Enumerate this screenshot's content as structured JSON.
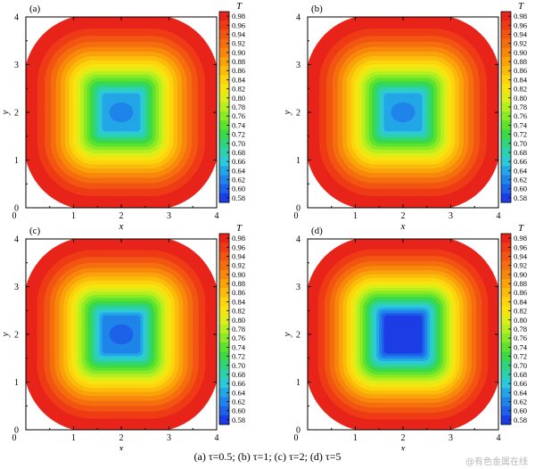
{
  "chart_data": [
    {
      "type": "heatmap",
      "panel_label": "(a)",
      "xlabel": "x",
      "ylabel": "y",
      "xlim": [
        0,
        4
      ],
      "ylim": [
        0,
        4
      ],
      "xticks": [
        "0",
        "1",
        "2",
        "3",
        "4"
      ],
      "yticks": [
        "0",
        "1",
        "2",
        "3",
        "4"
      ],
      "colorbar_title": "T",
      "colorbar_ticks": [
        "0.98",
        "0.96",
        "0.94",
        "0.92",
        "0.90",
        "0.88",
        "0.86",
        "0.84",
        "0.82",
        "0.80",
        "0.78",
        "0.76",
        "0.74",
        "0.72",
        "0.70",
        "0.68",
        "0.66",
        "0.64",
        "0.62",
        "0.60",
        "0.58"
      ],
      "colorbar_colors": [
        "#e8231a",
        "#ee3a15",
        "#f25511",
        "#f56e0e",
        "#f8870c",
        "#f9a20a",
        "#fbbb0a",
        "#fcd30c",
        "#f6e411",
        "#dded18",
        "#b5ef1e",
        "#8aea25",
        "#5fe22d",
        "#3ad945",
        "#2fd47c",
        "#2dd1ae",
        "#2cc9d8",
        "#23a6e8",
        "#1f84ea",
        "#1e61e9",
        "#1c3ce6"
      ],
      "cold_region": {
        "x": [
          1.65,
          2.35
        ],
        "y": [
          1.65,
          2.35
        ]
      },
      "core_value": 0.64,
      "boundary_value": 0.98
    },
    {
      "type": "heatmap",
      "panel_label": "(b)",
      "xlabel": "x",
      "ylabel": "y",
      "xlim": [
        0,
        4
      ],
      "ylim": [
        0,
        4
      ],
      "xticks": [
        "0",
        "1",
        "2",
        "3",
        "4"
      ],
      "yticks": [
        "0",
        "1",
        "2",
        "3",
        "4"
      ],
      "colorbar_title": "T",
      "colorbar_ticks": [
        "0.98",
        "0.96",
        "0.94",
        "0.92",
        "0.90",
        "0.88",
        "0.86",
        "0.84",
        "0.82",
        "0.80",
        "0.78",
        "0.76",
        "0.74",
        "0.72",
        "0.70",
        "0.68",
        "0.66",
        "0.64",
        "0.62",
        "0.60",
        "0.58"
      ],
      "colorbar_colors": [
        "#e8231a",
        "#ee3a15",
        "#f25511",
        "#f56e0e",
        "#f8870c",
        "#f9a20a",
        "#fbbb0a",
        "#fcd30c",
        "#f6e411",
        "#dded18",
        "#b5ef1e",
        "#8aea25",
        "#5fe22d",
        "#3ad945",
        "#2fd47c",
        "#2dd1ae",
        "#2cc9d8",
        "#23a6e8",
        "#1f84ea",
        "#1e61e9",
        "#1c3ce6"
      ],
      "cold_region": {
        "x": [
          1.65,
          2.35
        ],
        "y": [
          1.65,
          2.35
        ]
      },
      "core_value": 0.63,
      "boundary_value": 0.98
    },
    {
      "type": "heatmap",
      "panel_label": "(c)",
      "xlabel": "x",
      "ylabel": "y",
      "xlim": [
        0,
        4
      ],
      "ylim": [
        0,
        4
      ],
      "xticks": [
        "0",
        "1",
        "2",
        "3",
        "4"
      ],
      "yticks": [
        "0",
        "1",
        "2",
        "3",
        "4"
      ],
      "colorbar_title": "T",
      "colorbar_ticks": [
        "0.98",
        "0.96",
        "0.94",
        "0.92",
        "0.90",
        "0.88",
        "0.86",
        "0.84",
        "0.82",
        "0.80",
        "0.78",
        "0.76",
        "0.74",
        "0.72",
        "0.70",
        "0.68",
        "0.66",
        "0.64",
        "0.62",
        "0.60",
        "0.58"
      ],
      "colorbar_colors": [
        "#e8231a",
        "#ee3a15",
        "#f25511",
        "#f56e0e",
        "#f8870c",
        "#f9a20a",
        "#fbbb0a",
        "#fcd30c",
        "#f6e411",
        "#dded18",
        "#b5ef1e",
        "#8aea25",
        "#5fe22d",
        "#3ad945",
        "#2fd47c",
        "#2dd1ae",
        "#2cc9d8",
        "#23a6e8",
        "#1f84ea",
        "#1e61e9",
        "#1c3ce6"
      ],
      "cold_region": {
        "x": [
          1.65,
          2.35
        ],
        "y": [
          1.65,
          2.35
        ]
      },
      "core_value": 0.61,
      "boundary_value": 0.98
    },
    {
      "type": "heatmap",
      "panel_label": "(d)",
      "xlabel": "x",
      "ylabel": "y",
      "xlim": [
        0,
        4
      ],
      "ylim": [
        0,
        4
      ],
      "xticks": [
        "0",
        "1",
        "2",
        "3",
        "4"
      ],
      "yticks": [
        "0",
        "1",
        "2",
        "3",
        "4"
      ],
      "colorbar_title": "T",
      "colorbar_ticks": [
        "0.98",
        "0.96",
        "0.94",
        "0.92",
        "0.90",
        "0.88",
        "0.86",
        "0.84",
        "0.82",
        "0.80",
        "0.78",
        "0.76",
        "0.74",
        "0.72",
        "0.70",
        "0.68",
        "0.66",
        "0.64",
        "0.62",
        "0.60",
        "0.58"
      ],
      "colorbar_colors": [
        "#e8231a",
        "#ee3a15",
        "#f25511",
        "#f56e0e",
        "#f8870c",
        "#f9a20a",
        "#fbbb0a",
        "#fcd30c",
        "#f6e411",
        "#dded18",
        "#b5ef1e",
        "#8aea25",
        "#5fe22d",
        "#3ad945",
        "#2fd47c",
        "#2dd1ae",
        "#2cc9d8",
        "#23a6e8",
        "#1f84ea",
        "#1e61e9",
        "#1c3ce6"
      ],
      "cold_region": {
        "x": [
          1.65,
          2.35
        ],
        "y": [
          1.65,
          2.35
        ]
      },
      "core_value": 0.58,
      "boundary_value": 0.98
    }
  ],
  "caption": "(a) τ=0.5; (b) τ=1; (c) τ=2; (d) τ=5",
  "watermark": "@有色金属在线"
}
